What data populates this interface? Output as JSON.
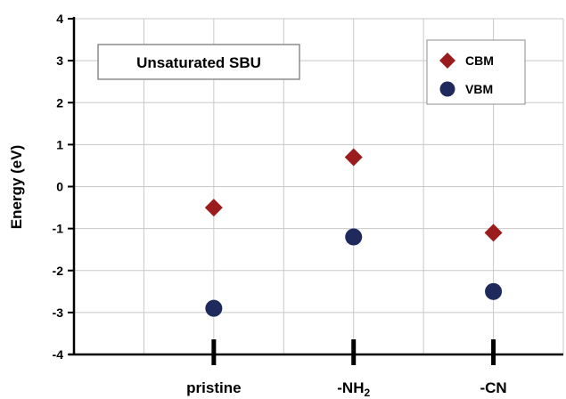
{
  "chart_data": {
    "type": "scatter",
    "categories": [
      {
        "main": "pristine",
        "sub": ""
      },
      {
        "main": "-NH",
        "sub": "2"
      },
      {
        "main": "-CN",
        "sub": ""
      }
    ],
    "series": [
      {
        "name": "CBM",
        "marker": "diamond",
        "color": "#9b1c1c",
        "values": [
          -0.5,
          0.7,
          -1.1
        ]
      },
      {
        "name": "VBM",
        "marker": "circle",
        "color": "#1f2a5c",
        "values": [
          -2.9,
          -1.2,
          -2.5
        ]
      }
    ],
    "ylabel": "Energy (eV)",
    "ylim": [
      -4,
      4
    ],
    "yticks": [
      4,
      3,
      2,
      1,
      0,
      -1,
      -2,
      -3,
      -4
    ],
    "annotation": "Unsaturated SBU",
    "grid": true,
    "legend_position": "top-right"
  }
}
